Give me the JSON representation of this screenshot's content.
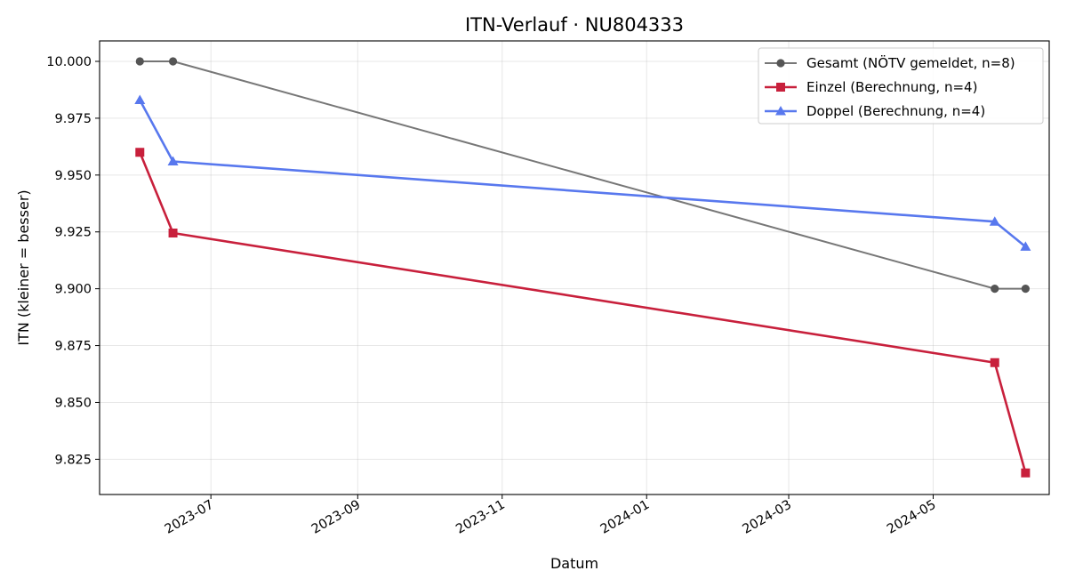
{
  "chart_data": {
    "type": "line",
    "title": "ITN-Verlauf · NU804333",
    "xlabel": "Datum",
    "ylabel": "ITN  (kleiner = besser)",
    "x_axis_type": "date",
    "xlim": [
      "2023-05-15",
      "2024-06-19"
    ],
    "ylim": [
      9.8095,
      10.009
    ],
    "x_ticks": [
      {
        "date": "2023-07-01",
        "label": "2023-07"
      },
      {
        "date": "2023-09-01",
        "label": "2023-09"
      },
      {
        "date": "2023-11-01",
        "label": "2023-11"
      },
      {
        "date": "2024-01-01",
        "label": "2024-01"
      },
      {
        "date": "2024-03-01",
        "label": "2024-03"
      },
      {
        "date": "2024-05-01",
        "label": "2024-05"
      }
    ],
    "y_ticks": [
      {
        "value": 9.825,
        "label": "9.825"
      },
      {
        "value": 9.85,
        "label": "9.850"
      },
      {
        "value": 9.875,
        "label": "9.875"
      },
      {
        "value": 9.9,
        "label": "9.900"
      },
      {
        "value": 9.925,
        "label": "9.925"
      },
      {
        "value": 9.95,
        "label": "9.950"
      },
      {
        "value": 9.975,
        "label": "9.975"
      },
      {
        "value": 10.0,
        "label": "10.000"
      }
    ],
    "grid": true,
    "legend_position": "top-right",
    "series": [
      {
        "name": "Gesamt (NÖTV gemeldet, n=8)",
        "color": "#555555",
        "marker": "circle",
        "points": [
          {
            "x": "2023-06-01",
            "y": 10.0
          },
          {
            "x": "2023-06-15",
            "y": 10.0
          },
          {
            "x": "2024-05-27",
            "y": 9.9
          },
          {
            "x": "2024-06-09",
            "y": 9.9
          }
        ]
      },
      {
        "name": "Einzel (Berechnung, n=4)",
        "color": "#c8203c",
        "marker": "square",
        "points": [
          {
            "x": "2023-06-01",
            "y": 9.96
          },
          {
            "x": "2023-06-15",
            "y": 9.9245
          },
          {
            "x": "2024-05-27",
            "y": 9.8675
          },
          {
            "x": "2024-06-09",
            "y": 9.819
          }
        ]
      },
      {
        "name": "Doppel (Berechnung, n=4)",
        "color": "#5878ee",
        "marker": "triangle",
        "points": [
          {
            "x": "2023-06-01",
            "y": 9.983
          },
          {
            "x": "2023-06-15",
            "y": 9.956
          },
          {
            "x": "2024-05-27",
            "y": 9.9295
          },
          {
            "x": "2024-06-09",
            "y": 9.9185
          }
        ]
      }
    ]
  }
}
